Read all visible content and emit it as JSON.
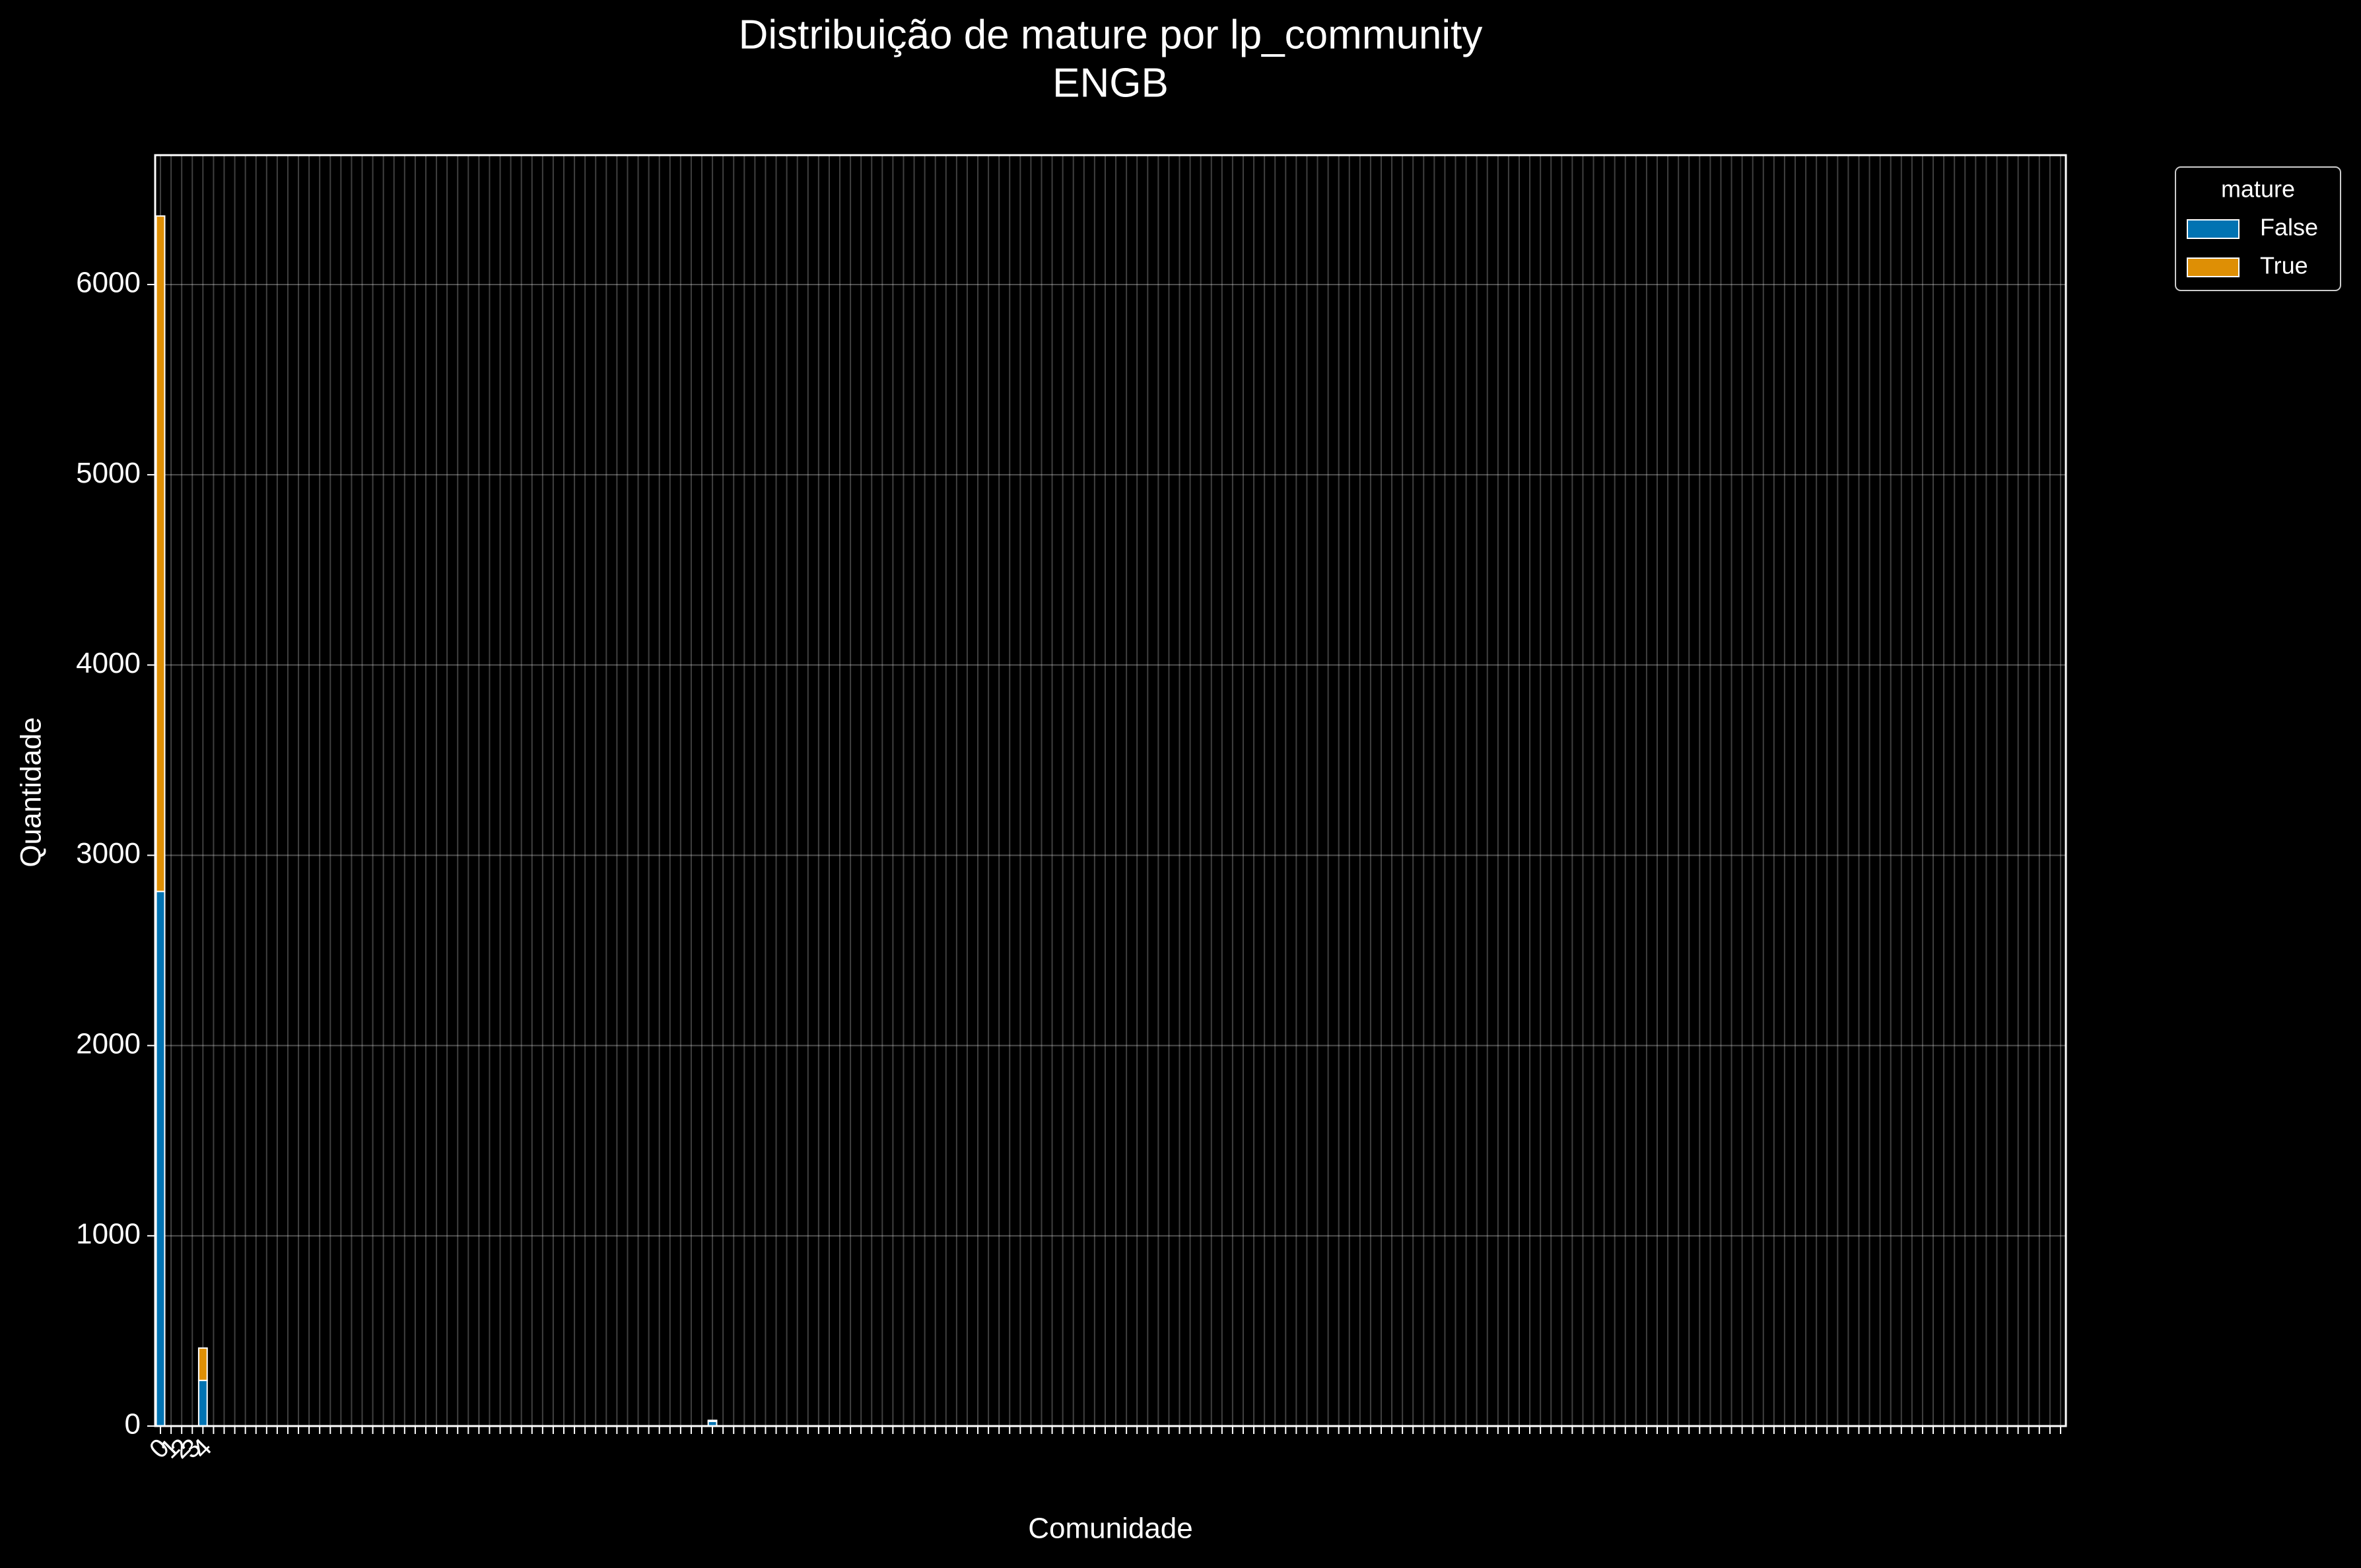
{
  "chart_data": {
    "type": "stacked_bar",
    "title": "Distribuição de mature por lp_community",
    "subtitle": "ENGB",
    "x_label": "Comunidade",
    "y_label": "Quantidade",
    "legend_title": "mature",
    "legend_position": "outside upper right",
    "grid": true,
    "ylim": [
      0,
      6680
    ],
    "yticks": [
      0,
      1000,
      2000,
      3000,
      4000,
      5000,
      6000
    ],
    "categories": [
      "0",
      "1",
      "2",
      "3",
      "4",
      null,
      null,
      null,
      null,
      null,
      null,
      null,
      null,
      null,
      null,
      null,
      null,
      null,
      null,
      null,
      null,
      null,
      null,
      null,
      null,
      null,
      null,
      null,
      null,
      null,
      null,
      null,
      null,
      null,
      null,
      null,
      null,
      null,
      null,
      null,
      null,
      null,
      null,
      null,
      null,
      null,
      null,
      null,
      null,
      null,
      null,
      null,
      null,
      null,
      null,
      null,
      null,
      null,
      null,
      null,
      null,
      null,
      null,
      null,
      null,
      null,
      null,
      null,
      null,
      null,
      null,
      null,
      null,
      null,
      null,
      null,
      null,
      null,
      null,
      null,
      null,
      null,
      null,
      null,
      null,
      null,
      null,
      null,
      null,
      null,
      null,
      null,
      null,
      null,
      null,
      null,
      null,
      null,
      null,
      null,
      null,
      null,
      null,
      null,
      null,
      null,
      null,
      null,
      null,
      null,
      null,
      null,
      null,
      null,
      null,
      null,
      null,
      null,
      null,
      null,
      null,
      null,
      null,
      null,
      null,
      null,
      null,
      null,
      null,
      null,
      null,
      null,
      null,
      null,
      null,
      null,
      null,
      null,
      null,
      null,
      null,
      null,
      null,
      null,
      null,
      null,
      null,
      null,
      null,
      null,
      null,
      null,
      null,
      null,
      null,
      null,
      null,
      null,
      null,
      null,
      null,
      null,
      null,
      null,
      null,
      null,
      null,
      null,
      null,
      null,
      null,
      null,
      null,
      null,
      null,
      null,
      null,
      null,
      null,
      null
    ],
    "series": [
      {
        "name": "False",
        "color": "#0173b2",
        "values": [
          2810,
          0,
          0,
          0,
          240,
          0,
          0,
          0,
          0,
          0,
          0,
          0,
          0,
          0,
          0,
          0,
          0,
          0,
          0,
          0,
          0,
          0,
          0,
          0,
          0,
          0,
          0,
          0,
          0,
          0,
          0,
          0,
          0,
          0,
          0,
          0,
          0,
          0,
          0,
          0,
          0,
          0,
          0,
          0,
          0,
          0,
          0,
          0,
          0,
          0,
          0,
          0,
          25,
          0,
          0,
          0,
          0,
          0,
          0,
          0,
          0,
          0,
          0,
          0,
          0,
          0,
          0,
          0,
          0,
          0,
          0,
          0,
          0,
          0,
          0,
          0,
          0,
          0,
          0,
          0,
          0,
          0,
          0,
          0,
          0,
          0,
          0,
          0,
          0,
          0,
          0,
          0,
          0,
          0,
          0,
          0,
          0,
          0,
          0,
          0,
          0,
          0,
          0,
          0,
          0,
          0,
          0,
          0,
          0,
          0,
          0,
          0,
          0,
          0,
          0,
          0,
          0,
          0,
          0,
          0,
          0,
          0,
          0,
          0,
          0,
          0,
          0,
          0,
          0,
          0,
          0,
          0,
          0,
          0,
          0,
          0,
          0,
          0,
          0,
          0,
          0,
          0,
          0,
          0,
          0,
          0,
          0,
          0,
          0,
          0,
          0,
          0,
          0,
          0,
          0,
          0,
          0,
          0,
          0,
          0,
          0,
          0,
          0,
          0,
          0,
          0,
          0,
          0,
          0,
          0,
          0,
          0,
          0,
          0,
          0,
          0,
          0,
          0,
          0,
          0
        ]
      },
      {
        "name": "True",
        "color": "#de8f05",
        "values": [
          3550,
          0,
          0,
          0,
          170,
          0,
          0,
          0,
          0,
          0,
          0,
          0,
          0,
          0,
          0,
          0,
          0,
          0,
          0,
          0,
          0,
          0,
          0,
          0,
          0,
          0,
          0,
          0,
          0,
          0,
          0,
          0,
          0,
          0,
          0,
          0,
          0,
          0,
          0,
          0,
          0,
          0,
          0,
          0,
          0,
          0,
          0,
          0,
          0,
          0,
          0,
          0,
          5,
          0,
          0,
          0,
          0,
          0,
          0,
          0,
          0,
          0,
          0,
          0,
          0,
          0,
          0,
          0,
          0,
          0,
          0,
          0,
          0,
          0,
          0,
          0,
          0,
          0,
          0,
          0,
          0,
          0,
          0,
          0,
          0,
          0,
          0,
          0,
          0,
          0,
          0,
          0,
          0,
          0,
          0,
          0,
          0,
          0,
          0,
          0,
          0,
          0,
          0,
          0,
          0,
          0,
          0,
          0,
          0,
          0,
          0,
          0,
          0,
          0,
          0,
          0,
          0,
          0,
          0,
          0,
          0,
          0,
          0,
          0,
          0,
          0,
          0,
          0,
          0,
          0,
          0,
          0,
          0,
          0,
          0,
          0,
          0,
          0,
          0,
          0,
          0,
          0,
          0,
          0,
          0,
          0,
          0,
          0,
          0,
          0,
          0,
          0,
          0,
          0,
          0,
          0,
          0,
          0,
          0,
          0,
          0,
          0,
          0,
          0,
          0,
          0,
          0,
          0,
          0,
          0,
          0,
          0,
          0,
          0,
          0,
          0,
          0,
          0,
          0,
          0
        ]
      }
    ]
  }
}
